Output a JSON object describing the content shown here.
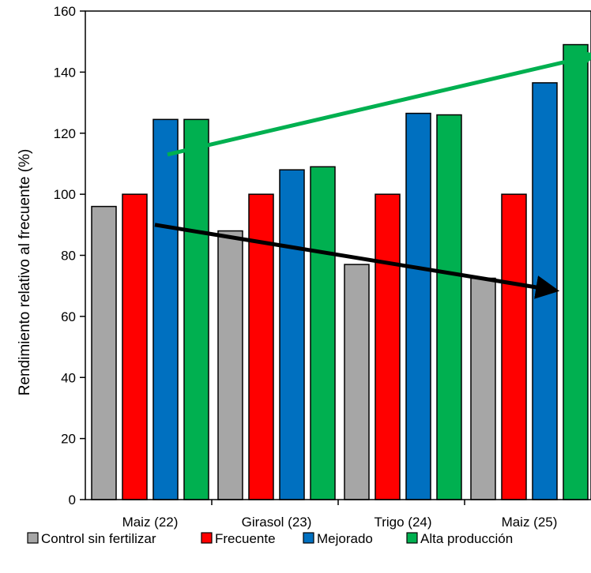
{
  "chart_data": {
    "type": "bar",
    "ylabel": "Rendimiento relativo al frecuente (%)",
    "xlabel": "",
    "ylim": [
      0,
      160
    ],
    "yticks": [
      0,
      20,
      40,
      60,
      80,
      100,
      120,
      140,
      160
    ],
    "grid": false,
    "legend_position": "bottom",
    "categories": [
      "Maiz (22)",
      "Girasol (23)",
      "Trigo (24)",
      "Maiz (25)"
    ],
    "series": [
      {
        "name": "Control sin fertilizar",
        "color": "#A6A6A6",
        "values": [
          96,
          88,
          77,
          72.5
        ]
      },
      {
        "name": "Frecuente",
        "color": "#FF0000",
        "values": [
          100,
          100,
          100,
          100
        ]
      },
      {
        "name": "Mejorado",
        "color": "#0070C0",
        "values": [
          124.5,
          108,
          126.5,
          136.5
        ]
      },
      {
        "name": "Alta producción",
        "color": "#00B050",
        "values": [
          124.5,
          109,
          126,
          149
        ]
      }
    ],
    "arrows": [
      {
        "name": "green-trend-arrow",
        "color": "#00B050",
        "from": {
          "x": 0.65,
          "y": 113
        },
        "to": {
          "x": 4.02,
          "y": 145.5
        }
      },
      {
        "name": "black-trend-arrow",
        "color": "#000000",
        "from": {
          "x": 0.55,
          "y": 90
        },
        "to": {
          "x": 3.72,
          "y": 68.5
        }
      }
    ]
  }
}
